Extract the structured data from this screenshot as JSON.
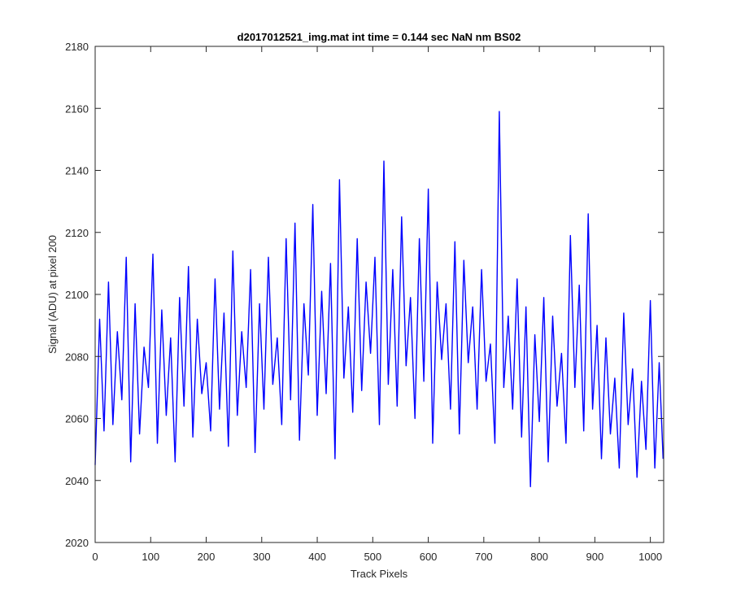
{
  "chart_data": {
    "type": "line",
    "title": "d2017012521_img.mat int time = 0.144 sec  NaN nm BS02",
    "xlabel": "Track Pixels",
    "ylabel": "Signal (ADU) at pixel 200",
    "xlim": [
      0,
      1024
    ],
    "ylim": [
      2020,
      2180
    ],
    "xticks": [
      0,
      100,
      200,
      300,
      400,
      500,
      600,
      700,
      800,
      900,
      1000
    ],
    "yticks": [
      2020,
      2040,
      2060,
      2080,
      2100,
      2120,
      2140,
      2160,
      2180
    ],
    "grid": false,
    "series": [
      {
        "color": "#0000ff",
        "x": [
          0,
          8,
          16,
          24,
          32,
          40,
          48,
          56,
          64,
          72,
          80,
          88,
          96,
          104,
          112,
          120,
          128,
          136,
          144,
          152,
          160,
          168,
          176,
          184,
          192,
          200,
          208,
          216,
          224,
          232,
          240,
          248,
          256,
          264,
          272,
          280,
          288,
          296,
          304,
          312,
          320,
          328,
          336,
          344,
          352,
          360,
          368,
          376,
          384,
          392,
          400,
          408,
          416,
          424,
          432,
          440,
          448,
          456,
          464,
          472,
          480,
          488,
          496,
          504,
          512,
          520,
          528,
          536,
          544,
          552,
          560,
          568,
          576,
          584,
          592,
          600,
          608,
          616,
          624,
          632,
          640,
          648,
          656,
          664,
          672,
          680,
          688,
          696,
          704,
          712,
          720,
          728,
          736,
          744,
          752,
          760,
          768,
          776,
          784,
          792,
          800,
          808,
          816,
          824,
          832,
          840,
          848,
          856,
          864,
          872,
          880,
          888,
          896,
          904,
          912,
          920,
          928,
          936,
          944,
          952,
          960,
          968,
          976,
          984,
          992,
          1000,
          1008,
          1016,
          1023
        ],
        "y": [
          2045,
          2092,
          2056,
          2104,
          2058,
          2088,
          2066,
          2112,
          2046,
          2097,
          2055,
          2083,
          2070,
          2113,
          2052,
          2095,
          2061,
          2086,
          2046,
          2099,
          2064,
          2109,
          2054,
          2092,
          2068,
          2078,
          2056,
          2105,
          2063,
          2094,
          2051,
          2114,
          2061,
          2088,
          2070,
          2108,
          2049,
          2097,
          2063,
          2112,
          2071,
          2086,
          2058,
          2118,
          2066,
          2123,
          2053,
          2097,
          2074,
          2129,
          2061,
          2101,
          2068,
          2110,
          2047,
          2137,
          2073,
          2096,
          2062,
          2118,
          2069,
          2104,
          2081,
          2112,
          2058,
          2143,
          2071,
          2108,
          2064,
          2125,
          2077,
          2099,
          2060,
          2118,
          2072,
          2134,
          2052,
          2104,
          2079,
          2097,
          2063,
          2117,
          2055,
          2111,
          2078,
          2096,
          2063,
          2108,
          2072,
          2084,
          2052,
          2159,
          2070,
          2093,
          2063,
          2105,
          2054,
          2096,
          2038,
          2087,
          2059,
          2099,
          2046,
          2093,
          2064,
          2081,
          2052,
          2119,
          2070,
          2103,
          2056,
          2126,
          2063,
          2090,
          2047,
          2086,
          2055,
          2073,
          2044,
          2094,
          2058,
          2076,
          2041,
          2072,
          2050,
          2098,
          2044,
          2078,
          2047
        ]
      }
    ]
  }
}
